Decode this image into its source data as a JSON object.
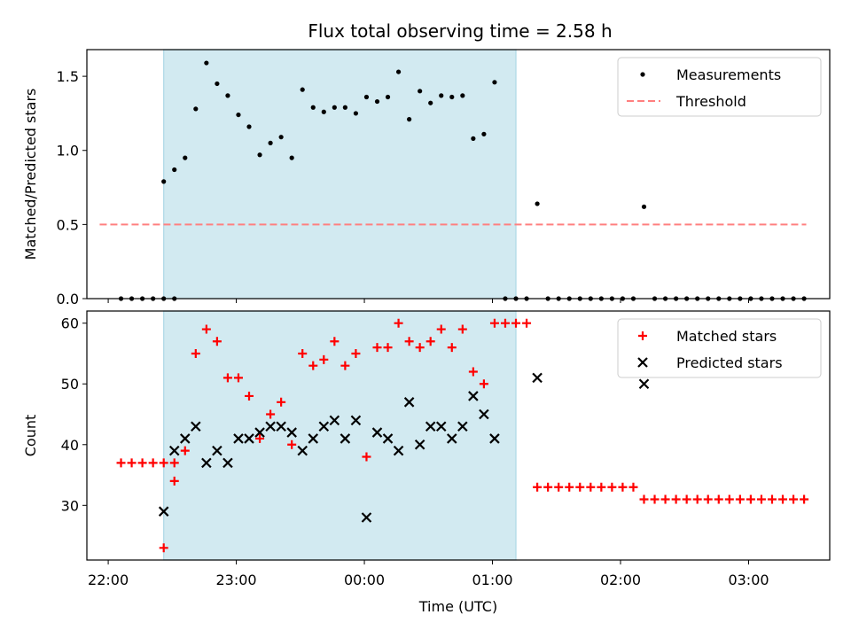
{
  "title": "Flux total observing time = 2.58 h",
  "colors": {
    "shade": "#add8e6",
    "matched": "#ff0000",
    "predicted": "#000000",
    "measurements": "#000000",
    "threshold": "#ff7f7f"
  },
  "chart_data": [
    {
      "type": "scatter",
      "ylabel": "Matched/Predicted stars",
      "xlim": [
        "21:50",
        "03:38"
      ],
      "ylim": [
        0,
        1.68
      ],
      "yticks": [
        0.0,
        0.5,
        1.0,
        1.5
      ],
      "ytick_labels": [
        "0.0",
        "0.5",
        "1.0",
        "1.5"
      ],
      "shaded_interval": [
        "22:26",
        "01:11"
      ],
      "legend": {
        "position": "top-right",
        "entries": [
          "Measurements",
          "Threshold"
        ]
      },
      "series": [
        {
          "name": "Measurements",
          "marker": "dot",
          "points": [
            [
              "22:06",
              0
            ],
            [
              "22:11",
              0
            ],
            [
              "22:16",
              0
            ],
            [
              "22:21",
              0
            ],
            [
              "22:26",
              0
            ],
            [
              "22:31",
              0
            ],
            [
              "22:26",
              0.79
            ],
            [
              "22:31",
              0.87
            ],
            [
              "22:36",
              0.95
            ],
            [
              "22:41",
              1.28
            ],
            [
              "22:46",
              1.59
            ],
            [
              "22:51",
              1.45
            ],
            [
              "22:56",
              1.37
            ],
            [
              "23:01",
              1.24
            ],
            [
              "23:06",
              1.16
            ],
            [
              "23:11",
              0.97
            ],
            [
              "23:16",
              1.05
            ],
            [
              "23:21",
              1.09
            ],
            [
              "23:26",
              0.95
            ],
            [
              "23:31",
              1.41
            ],
            [
              "23:36",
              1.29
            ],
            [
              "23:41",
              1.26
            ],
            [
              "23:46",
              1.29
            ],
            [
              "23:51",
              1.29
            ],
            [
              "23:56",
              1.25
            ],
            [
              "00:01",
              1.36
            ],
            [
              "00:06",
              1.33
            ],
            [
              "00:11",
              1.36
            ],
            [
              "00:16",
              1.53
            ],
            [
              "00:21",
              1.21
            ],
            [
              "00:26",
              1.4
            ],
            [
              "00:31",
              1.32
            ],
            [
              "00:36",
              1.37
            ],
            [
              "00:41",
              1.36
            ],
            [
              "00:46",
              1.37
            ],
            [
              "00:51",
              1.08
            ],
            [
              "00:56",
              1.11
            ],
            [
              "01:01",
              1.46
            ],
            [
              "01:06",
              0
            ],
            [
              "01:11",
              0
            ],
            [
              "01:16",
              0
            ],
            [
              "01:21",
              0.64
            ],
            [
              "01:26",
              0
            ],
            [
              "01:31",
              0
            ],
            [
              "01:36",
              0
            ],
            [
              "01:41",
              0
            ],
            [
              "01:46",
              0
            ],
            [
              "01:51",
              0
            ],
            [
              "01:56",
              0
            ],
            [
              "02:01",
              0
            ],
            [
              "02:06",
              0
            ],
            [
              "02:11",
              0.62
            ],
            [
              "02:16",
              0
            ],
            [
              "02:21",
              0
            ],
            [
              "02:26",
              0
            ],
            [
              "02:31",
              0
            ],
            [
              "02:36",
              0
            ],
            [
              "02:41",
              0
            ],
            [
              "02:46",
              0
            ],
            [
              "02:51",
              0
            ],
            [
              "02:56",
              0
            ],
            [
              "03:01",
              0
            ],
            [
              "03:06",
              0
            ],
            [
              "03:11",
              0
            ],
            [
              "03:16",
              0
            ],
            [
              "03:21",
              0
            ],
            [
              "03:26",
              0
            ]
          ]
        },
        {
          "name": "Threshold",
          "style": "dashed",
          "points": [
            [
              "21:56",
              0.5
            ],
            [
              "03:27",
              0.5
            ]
          ]
        }
      ]
    },
    {
      "type": "scatter",
      "ylabel": "Count",
      "xlabel": "Time (UTC)",
      "xlim": [
        "21:50",
        "03:38"
      ],
      "ylim": [
        21,
        62
      ],
      "yticks": [
        30,
        40,
        50,
        60
      ],
      "ytick_labels": [
        "30",
        "40",
        "50",
        "60"
      ],
      "xticks": [
        "22:00",
        "23:00",
        "00:00",
        "01:00",
        "02:00",
        "03:00"
      ],
      "xtick_labels": [
        "22:00",
        "23:00",
        "00:00",
        "01:00",
        "02:00",
        "03:00"
      ],
      "shaded_interval": [
        "22:26",
        "01:11"
      ],
      "legend": {
        "position": "top-right",
        "entries": [
          "Matched stars",
          "Predicted stars"
        ]
      },
      "series": [
        {
          "name": "Matched stars",
          "marker": "plus",
          "points": [
            [
              "22:06",
              37
            ],
            [
              "22:11",
              37
            ],
            [
              "22:16",
              37
            ],
            [
              "22:21",
              37
            ],
            [
              "22:26",
              37
            ],
            [
              "22:31",
              37
            ],
            [
              "22:26",
              23
            ],
            [
              "22:31",
              34
            ],
            [
              "22:36",
              39
            ],
            [
              "22:41",
              55
            ],
            [
              "22:46",
              59
            ],
            [
              "22:51",
              57
            ],
            [
              "22:56",
              51
            ],
            [
              "23:01",
              51
            ],
            [
              "23:06",
              48
            ],
            [
              "23:11",
              41
            ],
            [
              "23:16",
              45
            ],
            [
              "23:21",
              47
            ],
            [
              "23:26",
              40
            ],
            [
              "23:31",
              55
            ],
            [
              "23:36",
              53
            ],
            [
              "23:41",
              54
            ],
            [
              "23:46",
              57
            ],
            [
              "23:51",
              53
            ],
            [
              "23:56",
              55
            ],
            [
              "00:01",
              38
            ],
            [
              "00:06",
              56
            ],
            [
              "00:11",
              56
            ],
            [
              "00:16",
              60
            ],
            [
              "00:21",
              57
            ],
            [
              "00:26",
              56
            ],
            [
              "00:31",
              57
            ],
            [
              "00:36",
              59
            ],
            [
              "00:41",
              56
            ],
            [
              "00:46",
              59
            ],
            [
              "00:51",
              52
            ],
            [
              "00:56",
              50
            ],
            [
              "01:01",
              60
            ],
            [
              "01:06",
              60
            ],
            [
              "01:11",
              60
            ],
            [
              "01:16",
              60
            ],
            [
              "01:21",
              33
            ],
            [
              "01:26",
              33
            ],
            [
              "01:31",
              33
            ],
            [
              "01:36",
              33
            ],
            [
              "01:41",
              33
            ],
            [
              "01:46",
              33
            ],
            [
              "01:51",
              33
            ],
            [
              "01:56",
              33
            ],
            [
              "02:01",
              33
            ],
            [
              "02:06",
              33
            ],
            [
              "02:11",
              31
            ],
            [
              "02:16",
              31
            ],
            [
              "02:21",
              31
            ],
            [
              "02:26",
              31
            ],
            [
              "02:31",
              31
            ],
            [
              "02:36",
              31
            ],
            [
              "02:41",
              31
            ],
            [
              "02:46",
              31
            ],
            [
              "02:51",
              31
            ],
            [
              "02:56",
              31
            ],
            [
              "03:01",
              31
            ],
            [
              "03:06",
              31
            ],
            [
              "03:11",
              31
            ],
            [
              "03:16",
              31
            ],
            [
              "03:21",
              31
            ],
            [
              "03:26",
              31
            ]
          ]
        },
        {
          "name": "Predicted stars",
          "marker": "x",
          "points": [
            [
              "22:26",
              29
            ],
            [
              "22:31",
              39
            ],
            [
              "22:36",
              41
            ],
            [
              "22:41",
              43
            ],
            [
              "22:46",
              37
            ],
            [
              "22:51",
              39
            ],
            [
              "22:56",
              37
            ],
            [
              "23:01",
              41
            ],
            [
              "23:06",
              41
            ],
            [
              "23:11",
              42
            ],
            [
              "23:16",
              43
            ],
            [
              "23:21",
              43
            ],
            [
              "23:26",
              42
            ],
            [
              "23:31",
              39
            ],
            [
              "23:36",
              41
            ],
            [
              "23:41",
              43
            ],
            [
              "23:46",
              44
            ],
            [
              "23:51",
              41
            ],
            [
              "23:56",
              44
            ],
            [
              "00:01",
              28
            ],
            [
              "00:06",
              42
            ],
            [
              "00:11",
              41
            ],
            [
              "00:16",
              39
            ],
            [
              "00:21",
              47
            ],
            [
              "00:26",
              40
            ],
            [
              "00:31",
              43
            ],
            [
              "00:36",
              43
            ],
            [
              "00:41",
              41
            ],
            [
              "00:46",
              43
            ],
            [
              "00:51",
              48
            ],
            [
              "00:56",
              45
            ],
            [
              "01:01",
              41
            ],
            [
              "01:21",
              51
            ],
            [
              "02:11",
              50
            ]
          ]
        }
      ]
    }
  ]
}
